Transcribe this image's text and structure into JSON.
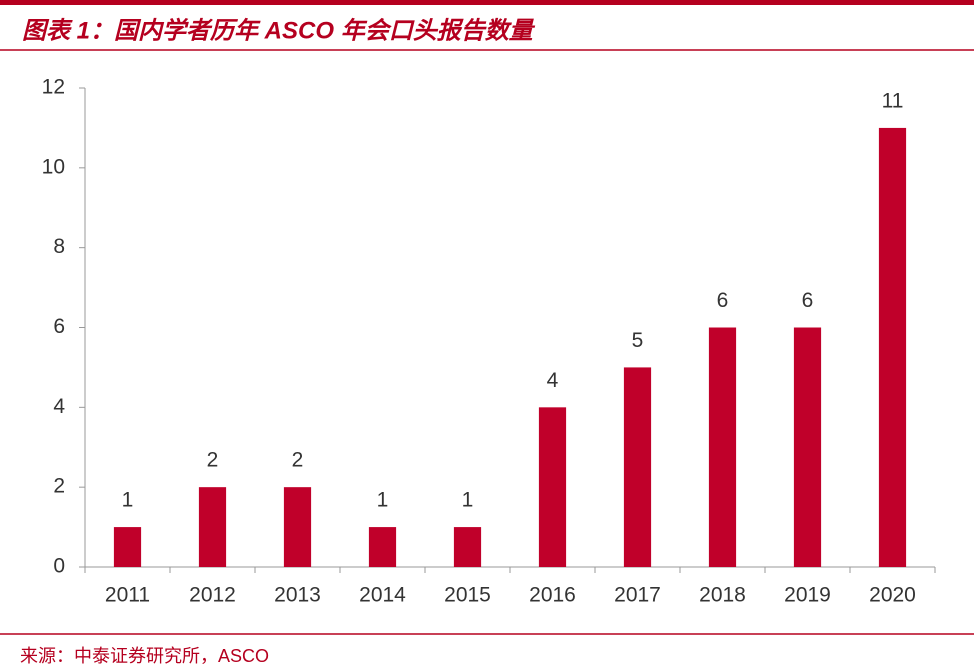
{
  "chart_data": {
    "type": "bar",
    "title": "图表 1：国内学者历年 ASCO 年会口头报告数量",
    "source": "来源：中泰证券研究所，ASCO",
    "categories": [
      "2011",
      "2012",
      "2013",
      "2014",
      "2015",
      "2016",
      "2017",
      "2018",
      "2019",
      "2020"
    ],
    "values": [
      1,
      2,
      2,
      1,
      1,
      4,
      5,
      6,
      6,
      11
    ],
    "color": "#c0002a",
    "ylim": [
      0,
      12
    ],
    "yticks": [
      0,
      2,
      4,
      6,
      8,
      10,
      12
    ]
  }
}
